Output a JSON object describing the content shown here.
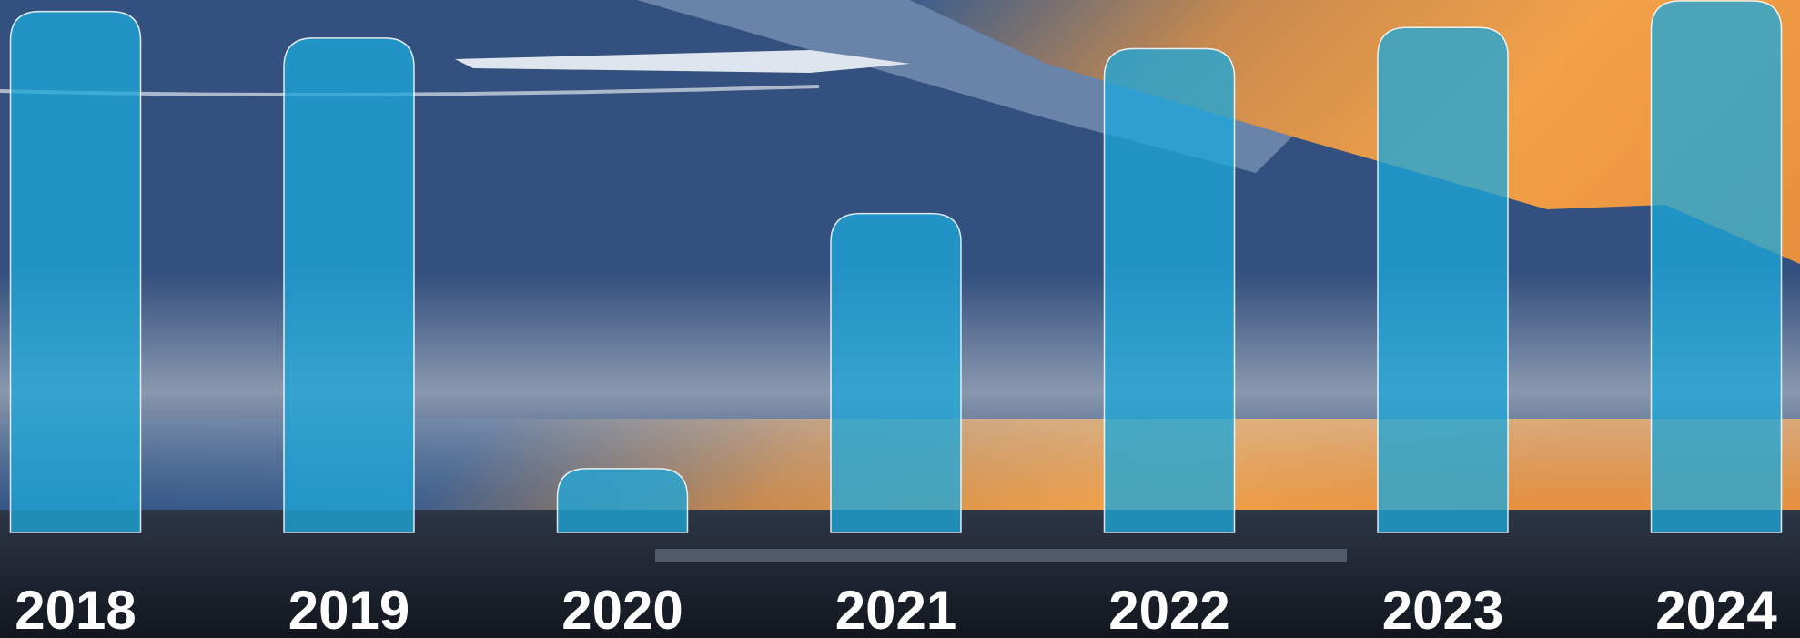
{
  "chart_data": {
    "type": "bar",
    "categories": [
      "2018",
      "2019",
      "2020",
      "2021",
      "2022",
      "2023",
      "2024"
    ],
    "values": [
      98,
      93,
      12,
      60,
      91,
      95,
      100
    ],
    "color": "#1ea7d8",
    "ylim": [
      0,
      100
    ]
  }
}
